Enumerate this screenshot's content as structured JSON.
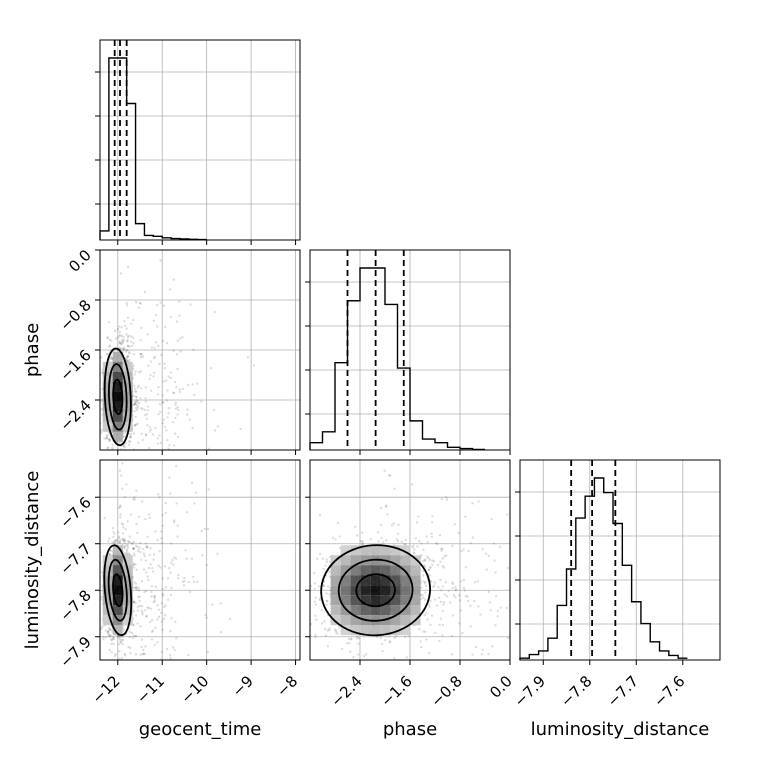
{
  "chart_data": {
    "type": "corner",
    "parameters": [
      "geocent_time",
      "phase",
      "luminosity_distance"
    ],
    "axis_labels": {
      "geocent_time": "geocent_time",
      "phase": "phase",
      "luminosity_distance": "luminosity_distance"
    },
    "ranges": {
      "geocent_time": [
        -12.4,
        -7.9
      ],
      "phase": [
        -3.2,
        0.0
      ],
      "luminosity_distance": [
        -7.95,
        -7.52
      ]
    },
    "ticks": {
      "geocent_time": {
        "values": [
          -12,
          -11,
          -10,
          -9,
          -8
        ],
        "labels": [
          "−12",
          "−11",
          "−10",
          "−9",
          "−8"
        ]
      },
      "phase": {
        "values": [
          -2.4,
          -1.6,
          -0.8,
          0.0
        ],
        "labels": [
          "−2.4",
          "−1.6",
          "−0.8",
          "0.0"
        ]
      },
      "luminosity_distance": {
        "values": [
          -7.9,
          -7.8,
          -7.7,
          -7.6
        ],
        "labels": [
          "−7.9",
          "−7.8",
          "−7.7",
          "−7.6"
        ]
      }
    },
    "grid": true,
    "marginals": [
      {
        "parameter": "geocent_time",
        "bin_edges": [
          -12.4,
          -12.2,
          -12.0,
          -11.8,
          -11.6,
          -11.4,
          -11.2,
          -11.0,
          -10.8,
          -10.6,
          -10.4,
          -10.2,
          -10.0
        ],
        "counts": [
          0.05,
          1.0,
          1.0,
          0.75,
          0.09,
          0.025,
          0.02,
          0.012,
          0.008,
          0.006,
          0.004,
          0.002
        ],
        "quantiles": [
          -12.07,
          -11.95,
          -11.8
        ]
      },
      {
        "parameter": "phase",
        "bin_edges": [
          -3.2,
          -3.0,
          -2.8,
          -2.6,
          -2.4,
          -2.2,
          -2.0,
          -1.8,
          -1.6,
          -1.4,
          -1.2,
          -1.0,
          -0.8,
          -0.6,
          -0.4
        ],
        "counts": [
          0.04,
          0.1,
          0.48,
          0.82,
          1.0,
          1.0,
          0.8,
          0.45,
          0.16,
          0.06,
          0.04,
          0.015,
          0.008,
          0.003
        ],
        "quantiles": [
          -2.6,
          -2.15,
          -1.7
        ]
      },
      {
        "parameter": "luminosity_distance",
        "bin_edges": [
          -7.95,
          -7.93,
          -7.91,
          -7.89,
          -7.87,
          -7.85,
          -7.83,
          -7.81,
          -7.79,
          -7.77,
          -7.75,
          -7.73,
          -7.71,
          -7.69,
          -7.67,
          -7.65,
          -7.63,
          -7.61,
          -7.59
        ],
        "counts": [
          0.01,
          0.03,
          0.05,
          0.12,
          0.3,
          0.5,
          0.78,
          0.9,
          1.0,
          0.92,
          0.75,
          0.52,
          0.32,
          0.2,
          0.1,
          0.05,
          0.025,
          0.01
        ],
        "quantiles": [
          -7.84,
          -7.795,
          -7.745
        ]
      }
    ],
    "joint": [
      {
        "x": "geocent_time",
        "y": "phase",
        "center": [
          -12.0,
          -2.35
        ],
        "spread": [
          0.15,
          0.4
        ],
        "corr": 0.1
      },
      {
        "x": "geocent_time",
        "y": "luminosity_distance",
        "center": [
          -12.0,
          -7.8
        ],
        "spread": [
          0.15,
          0.05
        ],
        "corr": 0.2
      },
      {
        "x": "phase",
        "y": "luminosity_distance",
        "center": [
          -2.15,
          -7.8
        ],
        "spread": [
          0.45,
          0.05
        ],
        "corr": 0.15
      }
    ]
  }
}
